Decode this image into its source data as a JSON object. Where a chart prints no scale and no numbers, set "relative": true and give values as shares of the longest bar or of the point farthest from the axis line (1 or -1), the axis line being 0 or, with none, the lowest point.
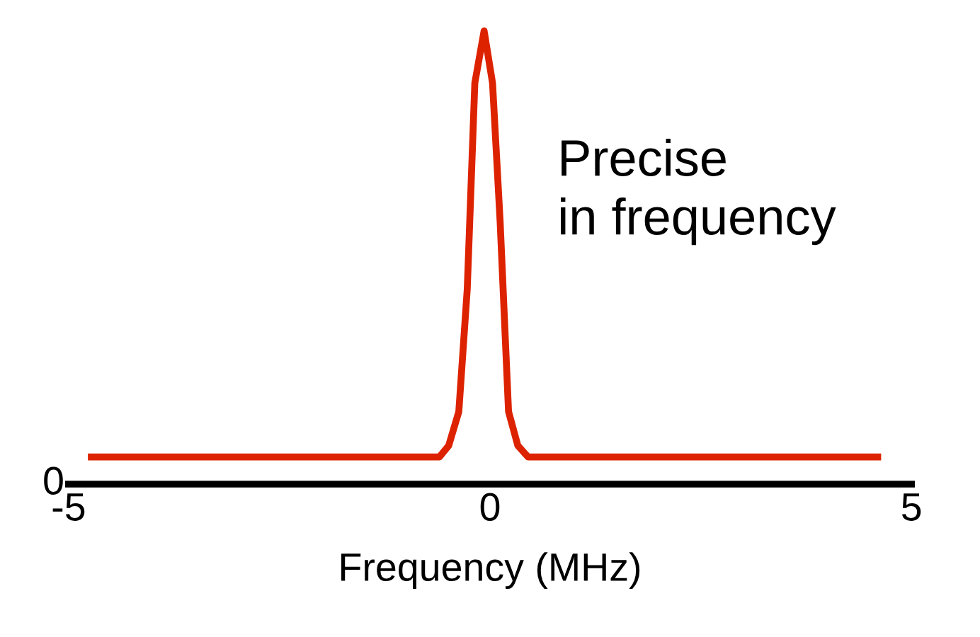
{
  "chart_data": {
    "type": "line",
    "relative": true,
    "xlabel": "Frequency (MHz)",
    "xlim": [
      -5,
      5
    ],
    "xticks": [
      -5,
      0,
      5
    ],
    "grid": false,
    "legend": false,
    "x": [
      -4.73,
      -0.6,
      -0.49,
      -0.37,
      -0.27,
      -0.18,
      -0.07,
      0.03,
      0.12,
      0.22,
      0.33,
      0.45,
      4.6
    ],
    "series": [
      {
        "color": "#dd2200",
        "values": [
          0.06,
          0.06,
          0.085,
          0.16,
          0.43,
          0.885,
          1,
          0.885,
          0.58,
          0.16,
          0.085,
          0.06,
          0.06
        ]
      }
    ],
    "annotations": [
      "0",
      "Precise\nin frequency"
    ]
  }
}
